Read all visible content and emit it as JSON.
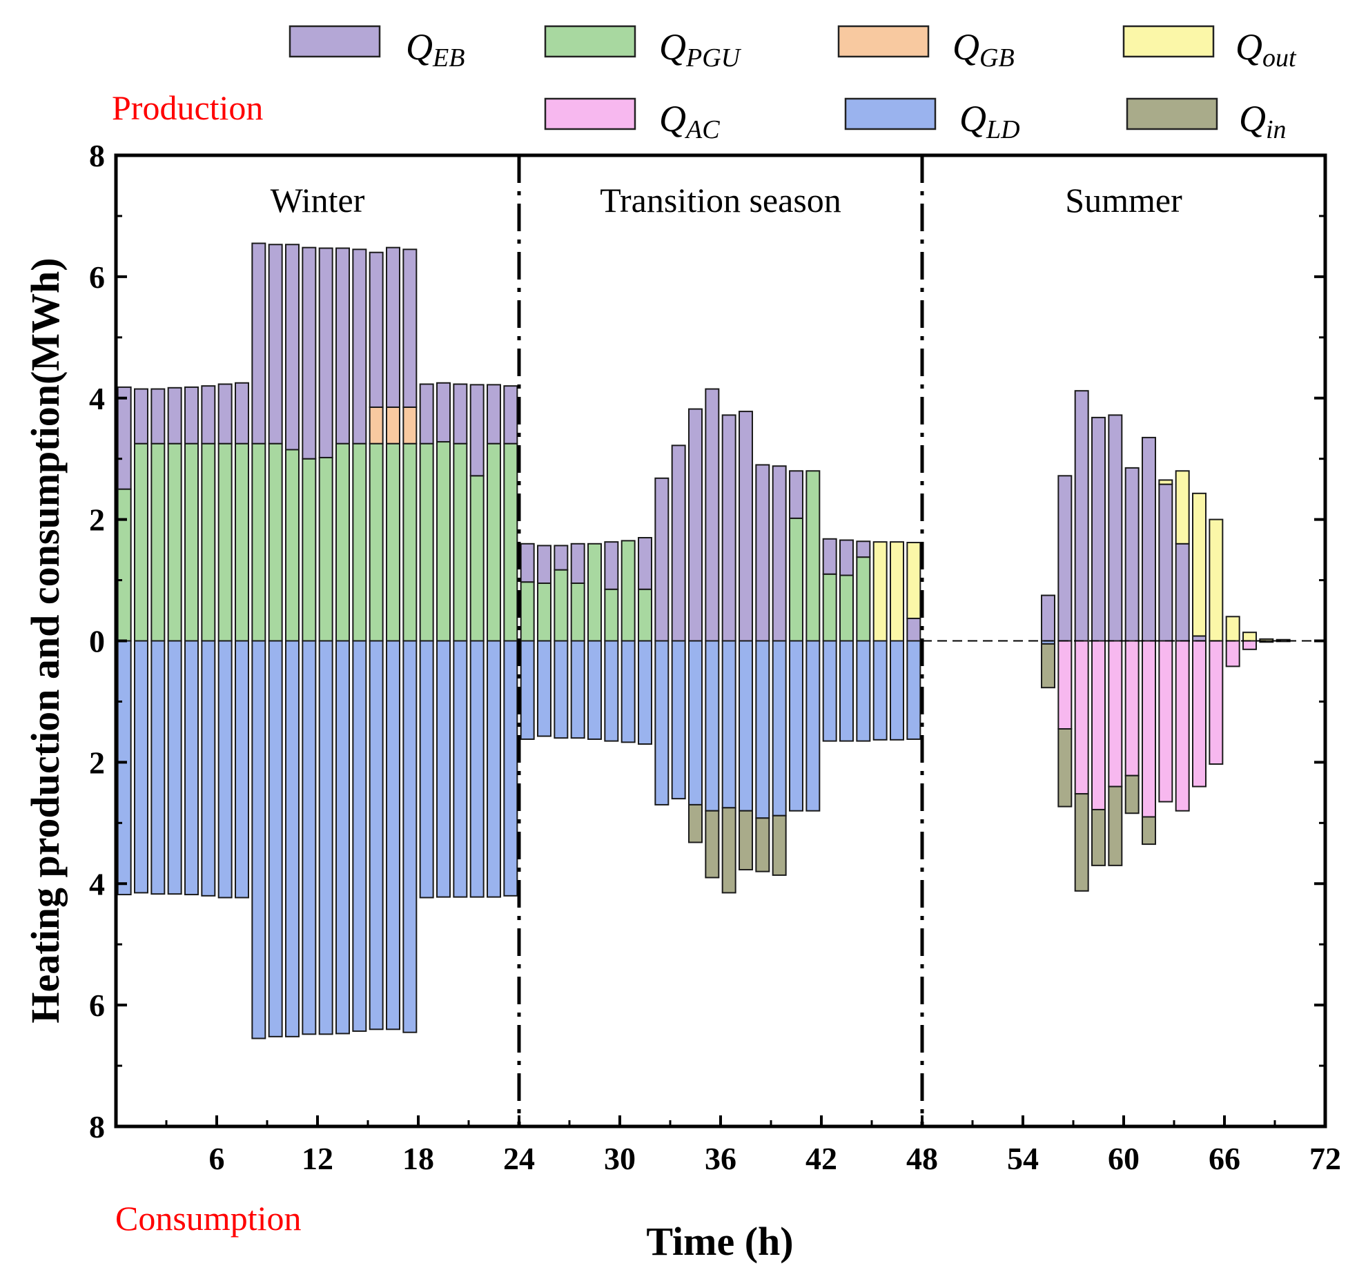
{
  "chart_data": {
    "type": "bar",
    "subtype": "stacked, production positive / consumption negative",
    "xlabel": "Time (h)",
    "ylabel": "Heating production and consumption(MWh)",
    "xlim": [
      0,
      72
    ],
    "ylim": [
      -8,
      8
    ],
    "x_ticks": [
      6,
      12,
      18,
      24,
      30,
      36,
      42,
      48,
      54,
      60,
      66,
      72
    ],
    "y_ticks": [
      {
        "value": 8,
        "label": "8"
      },
      {
        "value": 6,
        "label": "6"
      },
      {
        "value": 4,
        "label": "4"
      },
      {
        "value": 2,
        "label": "2"
      },
      {
        "value": 0,
        "label": "0"
      },
      {
        "value": -2,
        "label": "2"
      },
      {
        "value": -4,
        "label": "4"
      },
      {
        "value": -6,
        "label": "6"
      },
      {
        "value": -8,
        "label": "8"
      }
    ],
    "top_label": "Production",
    "bottom_label": "Consumption",
    "period_dividers": [
      24,
      48
    ],
    "periods": [
      {
        "name": "Winter",
        "x_center": 12
      },
      {
        "name": "Transition season",
        "x_center": 36
      },
      {
        "name": "Summer",
        "x_center": 60
      }
    ],
    "legend": [
      {
        "key": "EB",
        "symbol": "Q",
        "sub": "EB",
        "color": "#b4a7d6"
      },
      {
        "key": "PGU",
        "symbol": "Q",
        "sub": "PGU",
        "color": "#a8d8a0"
      },
      {
        "key": "GB",
        "symbol": "Q",
        "sub": "GB",
        "color": "#f8c9a0"
      },
      {
        "key": "out",
        "symbol": "Q",
        "sub": "out",
        "color": "#fbf7a8"
      },
      {
        "key": "AC",
        "symbol": "Q",
        "sub": "AC",
        "color": "#f7b8ef"
      },
      {
        "key": "LD",
        "symbol": "Q",
        "sub": "LD",
        "color": "#9ab3ee"
      },
      {
        "key": "in",
        "symbol": "Q",
        "sub": "in",
        "color": "#a9ab8a"
      }
    ],
    "hours": [
      1,
      2,
      3,
      4,
      5,
      6,
      7,
      8,
      9,
      10,
      11,
      12,
      13,
      14,
      15,
      16,
      17,
      18,
      19,
      20,
      21,
      22,
      23,
      24,
      25,
      26,
      27,
      28,
      29,
      30,
      31,
      32,
      33,
      34,
      35,
      36,
      37,
      38,
      39,
      40,
      41,
      42,
      43,
      44,
      45,
      46,
      47,
      48,
      49,
      50,
      51,
      52,
      53,
      54,
      55,
      56,
      57,
      58,
      59,
      60,
      61,
      62,
      63,
      64,
      65,
      66,
      67,
      68,
      69,
      70,
      71,
      72
    ],
    "production_series": [
      {
        "name": "Q_PGU",
        "key": "PGU",
        "values": [
          2.5,
          3.25,
          3.25,
          3.25,
          3.25,
          3.25,
          3.25,
          3.25,
          3.25,
          3.25,
          3.15,
          3.0,
          3.02,
          3.25,
          3.25,
          3.25,
          3.25,
          3.25,
          3.25,
          3.28,
          3.25,
          2.72,
          3.25,
          3.25,
          0.97,
          0.95,
          1.17,
          0.95,
          1.6,
          0.85,
          1.65,
          0.85,
          0,
          0,
          0,
          0,
          0,
          0,
          0,
          0,
          2.02,
          2.8,
          1.1,
          1.08,
          1.38,
          0,
          0,
          0,
          0,
          0,
          0,
          0,
          0,
          0,
          0,
          0,
          0,
          0,
          0,
          0,
          0,
          0,
          0,
          0,
          0,
          0,
          0,
          0,
          0,
          0,
          0,
          0
        ]
      },
      {
        "name": "Q_GB",
        "key": "GB",
        "values": [
          0,
          0,
          0,
          0,
          0,
          0,
          0,
          0,
          0,
          0,
          0,
          0,
          0,
          0,
          0,
          0.6,
          0.6,
          0.6,
          0,
          0,
          0,
          0,
          0,
          0,
          0,
          0,
          0,
          0,
          0,
          0,
          0,
          0,
          0,
          0,
          0,
          0,
          0,
          0,
          0,
          0,
          0,
          0,
          0,
          0,
          0,
          0,
          0,
          0,
          0,
          0,
          0,
          0,
          0,
          0,
          0,
          0,
          0,
          0,
          0,
          0,
          0,
          0,
          0,
          0,
          0,
          0,
          0,
          0,
          0,
          0,
          0,
          0
        ]
      },
      {
        "name": "Q_EB",
        "key": "EB",
        "values": [
          1.68,
          0.9,
          0.9,
          0.92,
          0.93,
          0.95,
          0.98,
          1.0,
          3.3,
          3.28,
          3.38,
          3.48,
          3.45,
          3.22,
          3.2,
          2.55,
          2.63,
          2.6,
          0.98,
          0.97,
          0.98,
          1.5,
          0.97,
          0.95,
          0.63,
          0.62,
          0.4,
          0.65,
          0,
          0.78,
          0,
          0.85,
          2.68,
          3.22,
          3.82,
          4.15,
          3.72,
          3.78,
          2.9,
          2.88,
          0.78,
          0,
          0.58,
          0.58,
          0.26,
          0,
          0,
          0.37,
          0,
          0,
          0,
          0,
          0,
          0,
          0,
          0.75,
          2.72,
          4.12,
          3.68,
          3.72,
          2.85,
          3.35,
          2.58,
          1.6,
          0.08,
          0,
          0,
          0,
          0,
          0,
          0,
          0
        ]
      },
      {
        "name": "Q_out",
        "key": "out",
        "values": [
          0,
          0,
          0,
          0,
          0,
          0,
          0,
          0,
          0,
          0,
          0,
          0,
          0,
          0,
          0,
          0,
          0,
          0,
          0,
          0,
          0,
          0,
          0,
          0,
          0,
          0,
          0,
          0,
          0,
          0,
          0,
          0,
          0,
          0,
          0,
          0,
          0,
          0,
          0,
          0,
          0,
          0,
          0,
          0,
          0,
          1.63,
          1.63,
          1.25,
          0,
          0,
          0,
          0,
          0,
          0,
          0,
          0,
          0,
          0,
          0,
          0,
          0,
          0,
          0.07,
          1.2,
          2.35,
          2.0,
          0.4,
          0.14,
          0.03,
          0.02,
          0,
          0
        ]
      }
    ],
    "consumption_series": [
      {
        "name": "Q_LD",
        "key": "LD",
        "values": [
          -4.18,
          -4.15,
          -4.17,
          -4.17,
          -4.18,
          -4.2,
          -4.23,
          -4.23,
          -6.55,
          -6.52,
          -6.52,
          -6.48,
          -6.48,
          -6.47,
          -6.43,
          -6.4,
          -6.4,
          -6.45,
          -4.23,
          -4.22,
          -4.22,
          -4.22,
          -4.22,
          -4.2,
          -1.62,
          -1.57,
          -1.6,
          -1.6,
          -1.62,
          -1.65,
          -1.67,
          -1.7,
          -2.7,
          -2.6,
          -2.7,
          -2.8,
          -2.75,
          -2.8,
          -2.92,
          -2.88,
          -2.8,
          -2.8,
          -1.65,
          -1.65,
          -1.65,
          -1.63,
          -1.63,
          -1.62,
          0,
          0,
          0,
          0,
          0,
          0,
          0,
          -0.05,
          0,
          0,
          0,
          0,
          0,
          0,
          0,
          0,
          0,
          0,
          0,
          0,
          0,
          0,
          0,
          0
        ]
      },
      {
        "name": "Q_AC",
        "key": "AC",
        "values": [
          0,
          0,
          0,
          0,
          0,
          0,
          0,
          0,
          0,
          0,
          0,
          0,
          0,
          0,
          0,
          0,
          0,
          0,
          0,
          0,
          0,
          0,
          0,
          0,
          0,
          0,
          0,
          0,
          0,
          0,
          0,
          0,
          0,
          0,
          0,
          0,
          0,
          0,
          0,
          0,
          0,
          0,
          0,
          0,
          0,
          0,
          0,
          0,
          0,
          0,
          0,
          0,
          0,
          0,
          0,
          0,
          -1.45,
          -2.52,
          -2.78,
          -2.4,
          -2.22,
          -2.9,
          -2.65,
          -2.8,
          -2.4,
          -2.03,
          -0.42,
          -0.14,
          -0.02,
          -0.01,
          0,
          0
        ]
      },
      {
        "name": "Q_in",
        "key": "in",
        "values": [
          0,
          0,
          0,
          0,
          0,
          0,
          0,
          0,
          0,
          0,
          0,
          0,
          0,
          0,
          0,
          0,
          0,
          0,
          0,
          0,
          0,
          0,
          0,
          0,
          0,
          0,
          0,
          0,
          0,
          0,
          0,
          0,
          0,
          0,
          -0.62,
          -1.1,
          -1.4,
          -0.97,
          -0.88,
          -0.98,
          0,
          0,
          0,
          0,
          0,
          0,
          0,
          0,
          0,
          0,
          0,
          0,
          0,
          0,
          0,
          -0.72,
          -1.28,
          -1.6,
          -0.92,
          -1.3,
          -0.62,
          -0.45,
          0,
          0,
          0,
          0,
          0,
          0,
          0,
          0,
          0,
          0
        ]
      }
    ]
  }
}
